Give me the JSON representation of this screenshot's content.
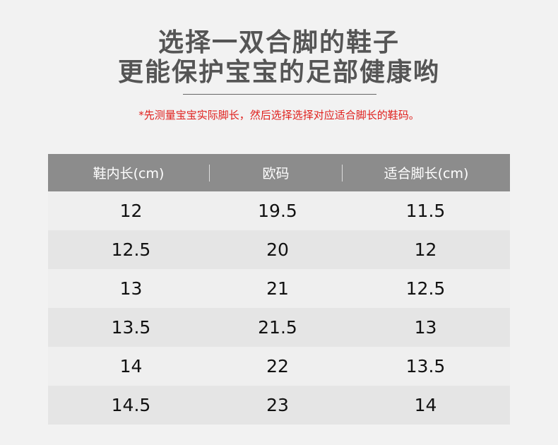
{
  "title_line1": "选择一双合脚的鞋子",
  "title_line2": "更能保护宝宝的足部健康哟",
  "note": "*先测量宝宝实际脚长，然后选择选择对应适合脚长的鞋码。",
  "table": {
    "headers": [
      "鞋内长(cm)",
      "欧码",
      "适合脚长(cm)"
    ],
    "rows": [
      [
        "12",
        "19.5",
        "11.5"
      ],
      [
        "12.5",
        "20",
        "12"
      ],
      [
        "13",
        "21",
        "12.5"
      ],
      [
        "13.5",
        "21.5",
        "13"
      ],
      [
        "14",
        "22",
        "13.5"
      ],
      [
        "14.5",
        "23",
        "14"
      ]
    ]
  },
  "colors": {
    "header_bg": "#8c8c8c",
    "note": "#e0201d",
    "title": "#555555"
  }
}
